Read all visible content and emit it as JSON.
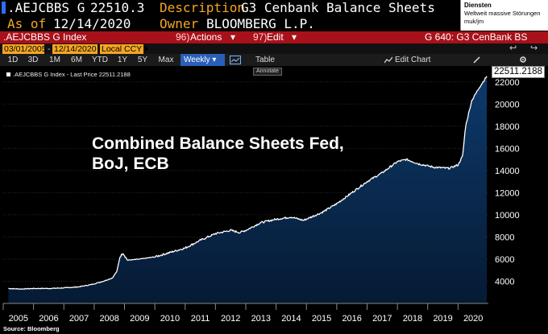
{
  "header": {
    "ticker": ".AEJCBBS G",
    "price": "22510.3",
    "description_label": "Description",
    "description": "G3 Cenbank Balance Sheets",
    "asof_label": "As of",
    "asof": "12/14/2020",
    "owner_label": "Owner",
    "owner": "BLOOMBERG L.P."
  },
  "notification": {
    "title": "Diensten",
    "message": "Weltweit massive Störungen muk/jm"
  },
  "toolbar": {
    "index_label": ".AEJCBBS G Index",
    "actions_num": "96)",
    "actions_label": "Actions",
    "actions_caret": "▾",
    "edit_num": "97)",
    "edit_label": "Edit",
    "edit_caret": "▾",
    "screen_title": "G 640: G3 CenBank BS"
  },
  "controls": {
    "start_date": "03/01/2005",
    "end_date": "12/14/2020",
    "currency": "Local CCY",
    "currency_caret": "▾",
    "back_icon": "↩",
    "forward_icon": "↪"
  },
  "ranges": {
    "items": [
      "1D",
      "3D",
      "1M",
      "6M",
      "YTD",
      "1Y",
      "5Y",
      "Max"
    ],
    "frequency": "Weekly",
    "frequency_caret": "▾",
    "table_label": "Table",
    "edit_chart_label": "Edit Chart",
    "edit_chart_icon": "line-chart-icon",
    "gear_icon": "gear-icon"
  },
  "chart_data": {
    "type": "area",
    "legend": ".AEJCBBS G Index - Last Price 22511.2188",
    "annotate_label": "Annotate",
    "annotation": "Combined Balance Sheets Fed,\nBoJ, ECB",
    "last_value_label": "22511.2188",
    "source": "Source: Bloomberg",
    "y_ticks": [
      4000,
      6000,
      8000,
      10000,
      12000,
      14000,
      16000,
      18000,
      20000,
      22000
    ],
    "x_ticks": [
      "2005",
      "2006",
      "2007",
      "2008",
      "2009",
      "2010",
      "2011",
      "2012",
      "2013",
      "2014",
      "2015",
      "2016",
      "2017",
      "2018",
      "2019",
      "2020"
    ],
    "ylim": [
      2000,
      23000
    ],
    "xlim": [
      2005.0,
      2021.0
    ],
    "series_color": "#ffffff",
    "fill_top": "#0d3a6b",
    "fill_bottom": "#061a33",
    "points": [
      [
        2005.17,
        3350
      ],
      [
        2005.6,
        3300
      ],
      [
        2006.0,
        3350
      ],
      [
        2006.5,
        3350
      ],
      [
        2007.0,
        3400
      ],
      [
        2007.5,
        3500
      ],
      [
        2007.9,
        3700
      ],
      [
        2008.3,
        4000
      ],
      [
        2008.6,
        4300
      ],
      [
        2008.75,
        4900
      ],
      [
        2008.85,
        6200
      ],
      [
        2008.95,
        6550
      ],
      [
        2009.1,
        5900
      ],
      [
        2009.5,
        6000
      ],
      [
        2010.0,
        6200
      ],
      [
        2010.5,
        6600
      ],
      [
        2011.0,
        7000
      ],
      [
        2011.5,
        7700
      ],
      [
        2012.0,
        8300
      ],
      [
        2012.5,
        8600
      ],
      [
        2012.8,
        8400
      ],
      [
        2013.0,
        8600
      ],
      [
        2013.5,
        9300
      ],
      [
        2014.0,
        9600
      ],
      [
        2014.5,
        9800
      ],
      [
        2014.9,
        9500
      ],
      [
        2015.5,
        10200
      ],
      [
        2016.0,
        11000
      ],
      [
        2016.5,
        12000
      ],
      [
        2017.0,
        13000
      ],
      [
        2017.5,
        13800
      ],
      [
        2018.0,
        14800
      ],
      [
        2018.3,
        15000
      ],
      [
        2018.7,
        14600
      ],
      [
        2019.2,
        14300
      ],
      [
        2019.7,
        14200
      ],
      [
        2020.0,
        14500
      ],
      [
        2020.15,
        15300
      ],
      [
        2020.25,
        18000
      ],
      [
        2020.45,
        20300
      ],
      [
        2020.7,
        21500
      ],
      [
        2020.95,
        22511
      ]
    ]
  }
}
